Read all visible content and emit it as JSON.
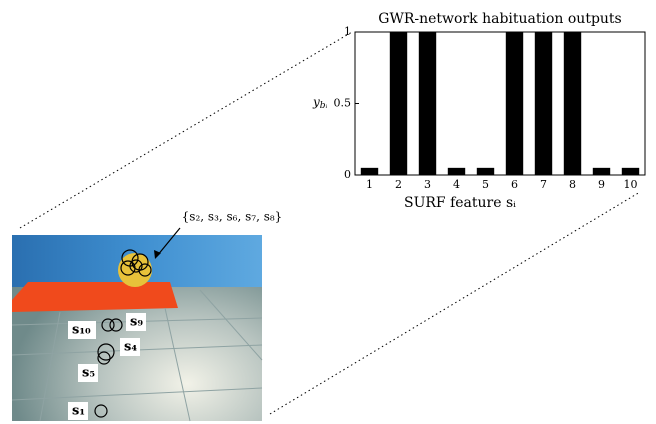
{
  "chart_data": {
    "type": "bar",
    "title": "GWR-network habituation outputs",
    "ylabel": {
      "main": "y",
      "sub": "bᵢ"
    },
    "xlabel": "SURF feature sᵢ",
    "categories": [
      "1",
      "2",
      "3",
      "4",
      "5",
      "6",
      "7",
      "8",
      "9",
      "10"
    ],
    "values": [
      0.05,
      1,
      1,
      0.05,
      0.05,
      1,
      1,
      1,
      0.05,
      0.05
    ],
    "color": "#000000",
    "ylim": [
      0,
      1
    ],
    "yticks": [
      0,
      0.5,
      1
    ],
    "grid": false
  },
  "photo": {
    "annotation": "{s₂, s₃, s₆, s₇, s₈}",
    "labels": [
      "s₁₀",
      "s₉",
      "s₄",
      "s₅",
      "s₁"
    ]
  }
}
